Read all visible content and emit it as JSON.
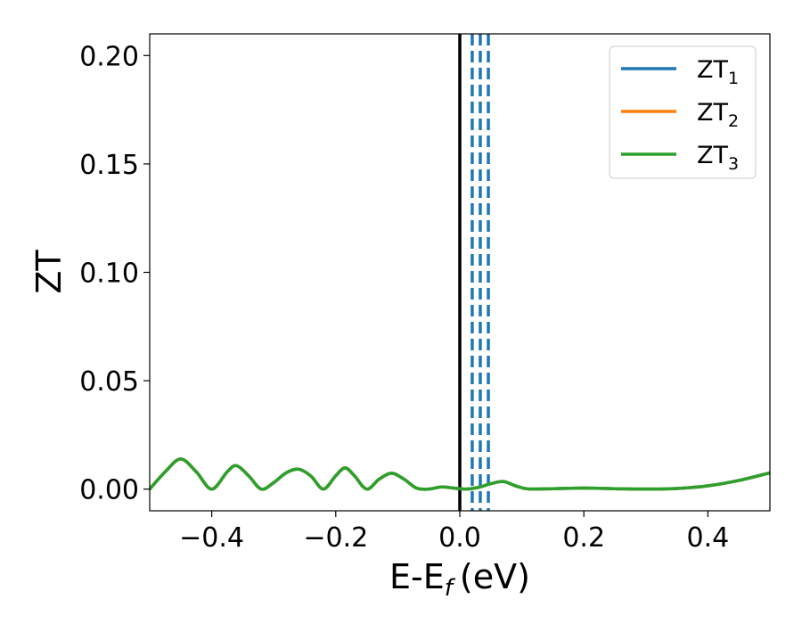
{
  "chart_data": {
    "type": "line",
    "title": "",
    "xlabel": "E-E",
    "xlabel_sub": "f",
    "xlabel_unit": "(eV)",
    "ylabel": "ZT",
    "xlim": [
      -0.5,
      0.5
    ],
    "ylim": [
      -0.01,
      0.21
    ],
    "xticks": [
      -0.4,
      -0.2,
      0.0,
      0.2,
      0.4
    ],
    "xtick_labels": [
      "−0.4",
      "−0.2",
      "0.0",
      "0.2",
      "0.4"
    ],
    "yticks": [
      0.0,
      0.05,
      0.1,
      0.15,
      0.2
    ],
    "ytick_labels": [
      "0.00",
      "0.05",
      "0.10",
      "0.15",
      "0.20"
    ],
    "grid": false,
    "legend_position": "top-right",
    "series": [
      {
        "name": "ZT",
        "sub": "1",
        "color": "#1f77b4",
        "x": [
          -0.5,
          -0.475,
          -0.45,
          -0.425,
          -0.4,
          -0.375,
          -0.36,
          -0.34,
          -0.32,
          -0.3,
          -0.28,
          -0.26,
          -0.24,
          -0.22,
          -0.2,
          -0.185,
          -0.17,
          -0.15,
          -0.13,
          -0.11,
          -0.09,
          -0.07,
          -0.05,
          -0.03,
          -0.01,
          0.01,
          0.03,
          0.05,
          0.07,
          0.09,
          0.11,
          0.15,
          0.2,
          0.25,
          0.3,
          0.35,
          0.4,
          0.45,
          0.5
        ],
        "y": [
          0.0,
          0.008,
          0.0139,
          0.008,
          0.0,
          0.008,
          0.0108,
          0.006,
          0.0,
          0.003,
          0.0075,
          0.0092,
          0.006,
          0.0,
          0.0062,
          0.0098,
          0.0062,
          0.0,
          0.0046,
          0.0073,
          0.0046,
          0.0005,
          0.0,
          0.001,
          0.0005,
          0.0,
          0.0008,
          0.0025,
          0.0035,
          0.0015,
          0.0001,
          0.0002,
          0.0005,
          0.0002,
          0.0,
          0.0003,
          0.0015,
          0.004,
          0.0075
        ]
      },
      {
        "name": "ZT",
        "sub": "2",
        "color": "#ff7f0e",
        "x": [
          -0.5,
          -0.475,
          -0.45,
          -0.425,
          -0.4,
          -0.375,
          -0.36,
          -0.34,
          -0.32,
          -0.3,
          -0.28,
          -0.26,
          -0.24,
          -0.22,
          -0.2,
          -0.185,
          -0.17,
          -0.15,
          -0.13,
          -0.11,
          -0.09,
          -0.07,
          -0.05,
          -0.03,
          -0.01,
          0.01,
          0.03,
          0.05,
          0.07,
          0.09,
          0.11,
          0.15,
          0.2,
          0.25,
          0.3,
          0.35,
          0.4,
          0.45,
          0.5
        ],
        "y": [
          0.0,
          0.008,
          0.0139,
          0.008,
          0.0,
          0.008,
          0.0108,
          0.006,
          0.0,
          0.003,
          0.0075,
          0.0092,
          0.006,
          0.0,
          0.0062,
          0.0098,
          0.0062,
          0.0,
          0.0046,
          0.0073,
          0.0046,
          0.0005,
          0.0,
          0.001,
          0.0005,
          0.0,
          0.0008,
          0.0025,
          0.0035,
          0.0015,
          0.0001,
          0.0002,
          0.0005,
          0.0002,
          0.0,
          0.0003,
          0.0015,
          0.004,
          0.0075
        ]
      },
      {
        "name": "ZT",
        "sub": "3",
        "color": "#2ca02c",
        "x": [
          -0.5,
          -0.475,
          -0.45,
          -0.425,
          -0.4,
          -0.375,
          -0.36,
          -0.34,
          -0.32,
          -0.3,
          -0.28,
          -0.26,
          -0.24,
          -0.22,
          -0.2,
          -0.185,
          -0.17,
          -0.15,
          -0.13,
          -0.11,
          -0.09,
          -0.07,
          -0.05,
          -0.03,
          -0.01,
          0.01,
          0.03,
          0.05,
          0.07,
          0.09,
          0.11,
          0.15,
          0.2,
          0.25,
          0.3,
          0.35,
          0.4,
          0.45,
          0.5
        ],
        "y": [
          0.0,
          0.008,
          0.0139,
          0.008,
          0.0,
          0.008,
          0.0108,
          0.006,
          0.0,
          0.003,
          0.0075,
          0.0092,
          0.006,
          0.0,
          0.0062,
          0.0098,
          0.0062,
          0.0,
          0.0046,
          0.0073,
          0.0046,
          0.0005,
          0.0,
          0.001,
          0.0005,
          0.0,
          0.0008,
          0.0025,
          0.0035,
          0.0015,
          0.0001,
          0.0002,
          0.0005,
          0.0002,
          0.0,
          0.0003,
          0.0015,
          0.004,
          0.0075
        ]
      }
    ],
    "vertical_lines": [
      {
        "x": 0.0,
        "color": "#000000",
        "style": "solid"
      },
      {
        "x": 0.02,
        "color": "#1f77b4",
        "style": "dashed"
      },
      {
        "x": 0.033,
        "color": "#1f77b4",
        "style": "dashed"
      },
      {
        "x": 0.046,
        "color": "#1f77b4",
        "style": "dashed"
      }
    ]
  }
}
